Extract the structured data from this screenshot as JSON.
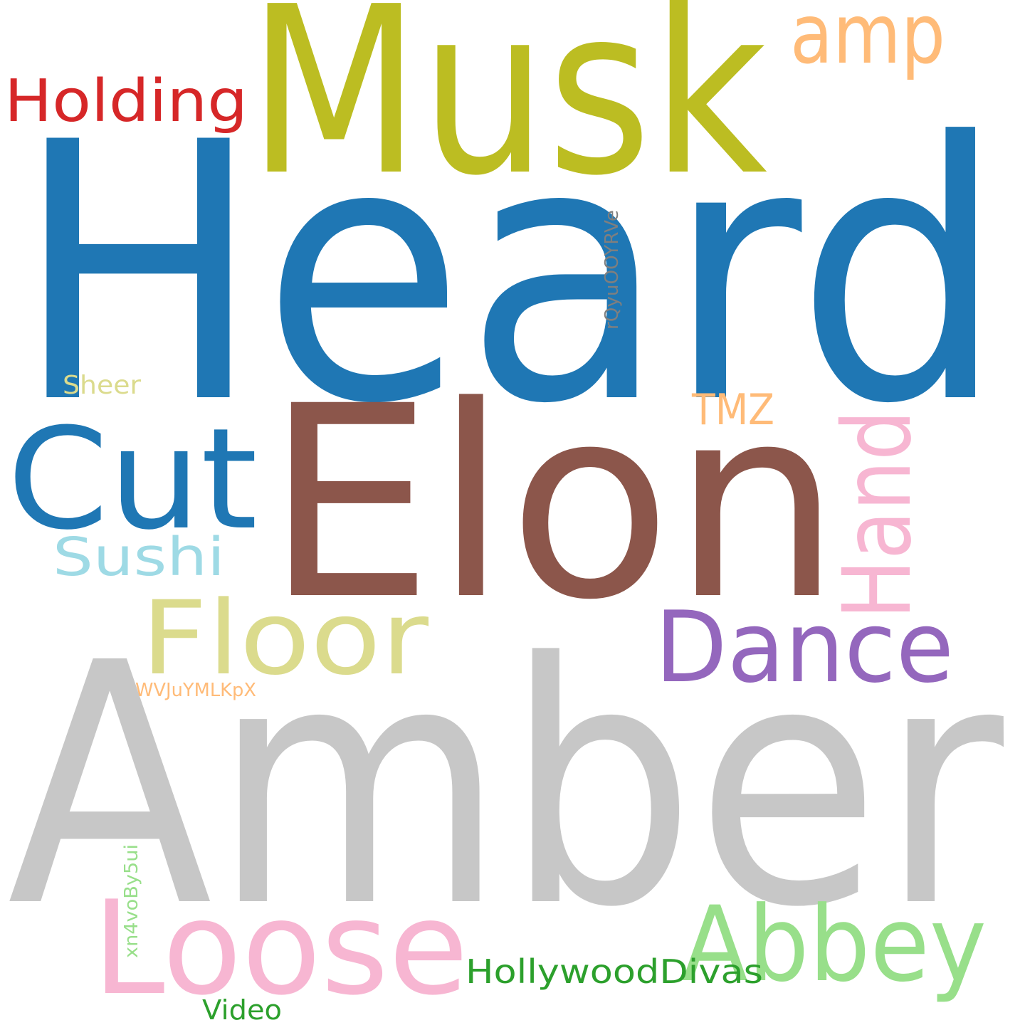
{
  "background": "#ffffff",
  "words": [
    {
      "id": "heard",
      "text": "Heard",
      "color": "#1f77b4"
    },
    {
      "id": "amber",
      "text": "Amber",
      "color": "#c7c7c7"
    },
    {
      "id": "musk",
      "text": "Musk",
      "color": "#bcbd22"
    },
    {
      "id": "elon",
      "text": "Elon",
      "color": "#8c564b"
    },
    {
      "id": "cut",
      "text": "Cut",
      "color": "#1f77b4"
    },
    {
      "id": "loose",
      "text": "Loose",
      "color": "#f7b6d2"
    },
    {
      "id": "abbey",
      "text": "Abbey",
      "color": "#98df8a"
    },
    {
      "id": "floor",
      "text": "Floor",
      "color": "#dbdb8d"
    },
    {
      "id": "dance",
      "text": "Dance",
      "color": "#9467bd"
    },
    {
      "id": "hand",
      "text": "Hand",
      "color": "#f7b6d2"
    },
    {
      "id": "amp",
      "text": "amp",
      "color": "#ffbb78"
    },
    {
      "id": "holding",
      "text": "Holding",
      "color": "#d62728"
    },
    {
      "id": "sushi",
      "text": "Sushi",
      "color": "#9edae5"
    },
    {
      "id": "tmz",
      "text": "TMZ",
      "color": "#ffbb78"
    },
    {
      "id": "hollywooddivas",
      "text": "HollywoodDivas",
      "color": "#2ca02c"
    },
    {
      "id": "rqyu",
      "text": "rQyuOOYRVe",
      "color": "#7f7f7f"
    },
    {
      "id": "sheer",
      "text": "Sheer",
      "color": "#dbdb8d"
    },
    {
      "id": "wvju",
      "text": "WVJuYMLKpX",
      "color": "#ffbb78"
    },
    {
      "id": "xn4vo",
      "text": "xn4voBy5ui",
      "color": "#98df8a"
    },
    {
      "id": "video",
      "text": "Video",
      "color": "#2ca02c"
    }
  ]
}
